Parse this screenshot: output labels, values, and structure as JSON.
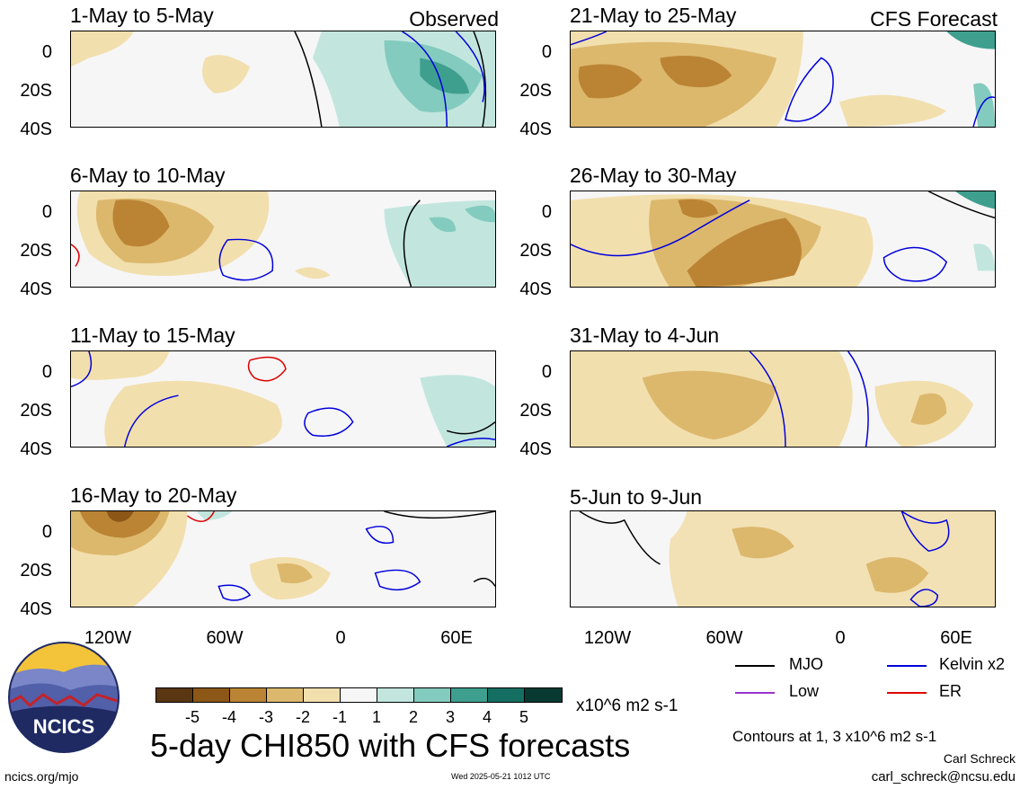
{
  "panels_left": [
    {
      "title": "1-May to 5-May",
      "corner": "Observed"
    },
    {
      "title": "6-May to 10-May",
      "corner": ""
    },
    {
      "title": "11-May to 15-May",
      "corner": ""
    },
    {
      "title": "16-May to 20-May",
      "corner": ""
    }
  ],
  "panels_right": [
    {
      "title": "21-May to 25-May",
      "corner": "CFS Forecast"
    },
    {
      "title": "26-May to 30-May",
      "corner": ""
    },
    {
      "title": "31-May to 4-Jun",
      "corner": ""
    },
    {
      "title": "5-Jun to 9-Jun",
      "corner": ""
    }
  ],
  "lat_labels": [
    "0",
    "20S",
    "40S"
  ],
  "lon_labels": [
    "120W",
    "60W",
    "0",
    "60E"
  ],
  "legend": {
    "mjo": "MJO",
    "kelvin": "Kelvin x2",
    "low": "Low",
    "er": "ER",
    "colors": {
      "mjo": "#000000",
      "kelvin": "#0000dd",
      "low": "#9933cc",
      "er": "#dd0000"
    }
  },
  "colorbar": {
    "labels": [
      "-5",
      "-4",
      "-3",
      "-2",
      "-1",
      "1",
      "2",
      "3",
      "4",
      "5"
    ],
    "colors": [
      "#5a3712",
      "#8c5717",
      "#bb8434",
      "#dcb86d",
      "#f2dfae",
      "#f6f6f6",
      "#c2e6de",
      "#83cbbe",
      "#3f9f8f",
      "#156e62",
      "#083a32"
    ],
    "units": "x10^6 m2 s-1"
  },
  "main_title": "5-day CHI850 with CFS forecasts",
  "contours_note": "Contours at 1, 3 x10^6 m2 s-1",
  "author": "Carl Schreck",
  "email": "carl_schreck@ncsu.edu",
  "website": "ncics.org/mjo",
  "timestamp": "Wed 2025-05-21 1012 UTC",
  "logo_text": "NCICS"
}
